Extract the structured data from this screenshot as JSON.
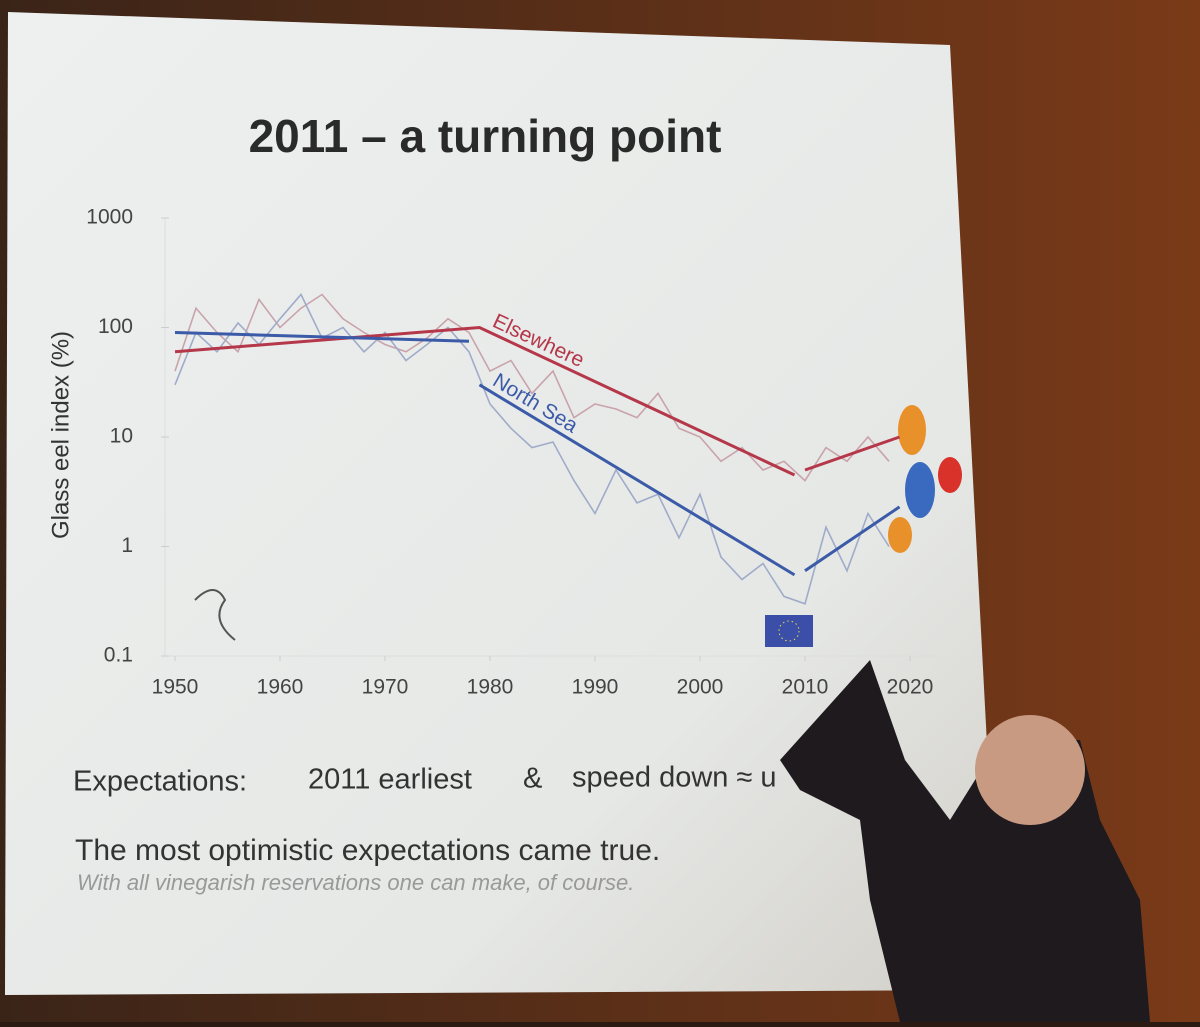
{
  "chart_data": {
    "type": "line",
    "title": "2011 – a turning point",
    "y_label": "Glass eel index (%)",
    "yscale": "log",
    "ylim": [
      0.1,
      1000
    ],
    "yticks": [
      0.1,
      1,
      10,
      100,
      1000
    ],
    "xlim": [
      1950,
      2020
    ],
    "xticks": [
      1950,
      1960,
      1970,
      1980,
      1990,
      2000,
      2010,
      2020
    ],
    "series": [
      {
        "color": "#c9a3ab",
        "x": [
          1950,
          1952,
          1954,
          1956,
          1958,
          1960,
          1962,
          1964,
          1966,
          1968,
          1970,
          1972,
          1974,
          1976,
          1978,
          1980,
          1982,
          1984,
          1986,
          1988,
          1990,
          1992,
          1994,
          1996,
          1998,
          2000,
          2002,
          2004,
          2006,
          2008,
          2010,
          2012,
          2014,
          2016,
          2018
        ],
        "values": [
          40,
          150,
          90,
          60,
          180,
          100,
          150,
          200,
          120,
          90,
          70,
          60,
          80,
          120,
          90,
          40,
          50,
          25,
          40,
          15,
          20,
          18,
          15,
          25,
          12,
          10,
          6,
          8,
          5,
          6,
          4,
          8,
          6,
          10,
          6
        ]
      },
      {
        "color": "#9fabc9",
        "x": [
          1950,
          1952,
          1954,
          1956,
          1958,
          1960,
          1962,
          1964,
          1966,
          1968,
          1970,
          1972,
          1974,
          1976,
          1978,
          1980,
          1982,
          1984,
          1986,
          1988,
          1990,
          1992,
          1994,
          1996,
          1998,
          2000,
          2002,
          2004,
          2006,
          2008,
          2010,
          2012,
          2014,
          2016,
          2018
        ],
        "values": [
          30,
          90,
          60,
          110,
          70,
          120,
          200,
          80,
          100,
          60,
          90,
          50,
          70,
          100,
          60,
          20,
          12,
          8,
          9,
          4,
          2,
          5,
          2.5,
          3,
          1.2,
          3,
          0.8,
          0.5,
          0.7,
          0.35,
          0.3,
          1.5,
          0.6,
          2,
          1
        ]
      },
      {
        "name": "Elsewhere",
        "color": "#b5374a",
        "x": [
          1950,
          1979,
          2009,
          2009.5,
          2010,
          2019
        ],
        "values": [
          60,
          100,
          4.5,
          null,
          5,
          10
        ]
      },
      {
        "name": "North Sea",
        "color": "#3b5ba8",
        "x": [
          1950,
          1978,
          1978.5,
          1979,
          2009,
          2009.5,
          2010,
          2019
        ],
        "values": [
          90,
          75,
          null,
          30,
          0.55,
          null,
          0.6,
          2.3
        ]
      }
    ],
    "annotations": [
      "Expectations:",
      "2011 earliest",
      "&",
      "speed down ≈ u",
      "The most optimistic expectations came true.",
      "With all vinegarish reservations one can make, of course."
    ]
  }
}
